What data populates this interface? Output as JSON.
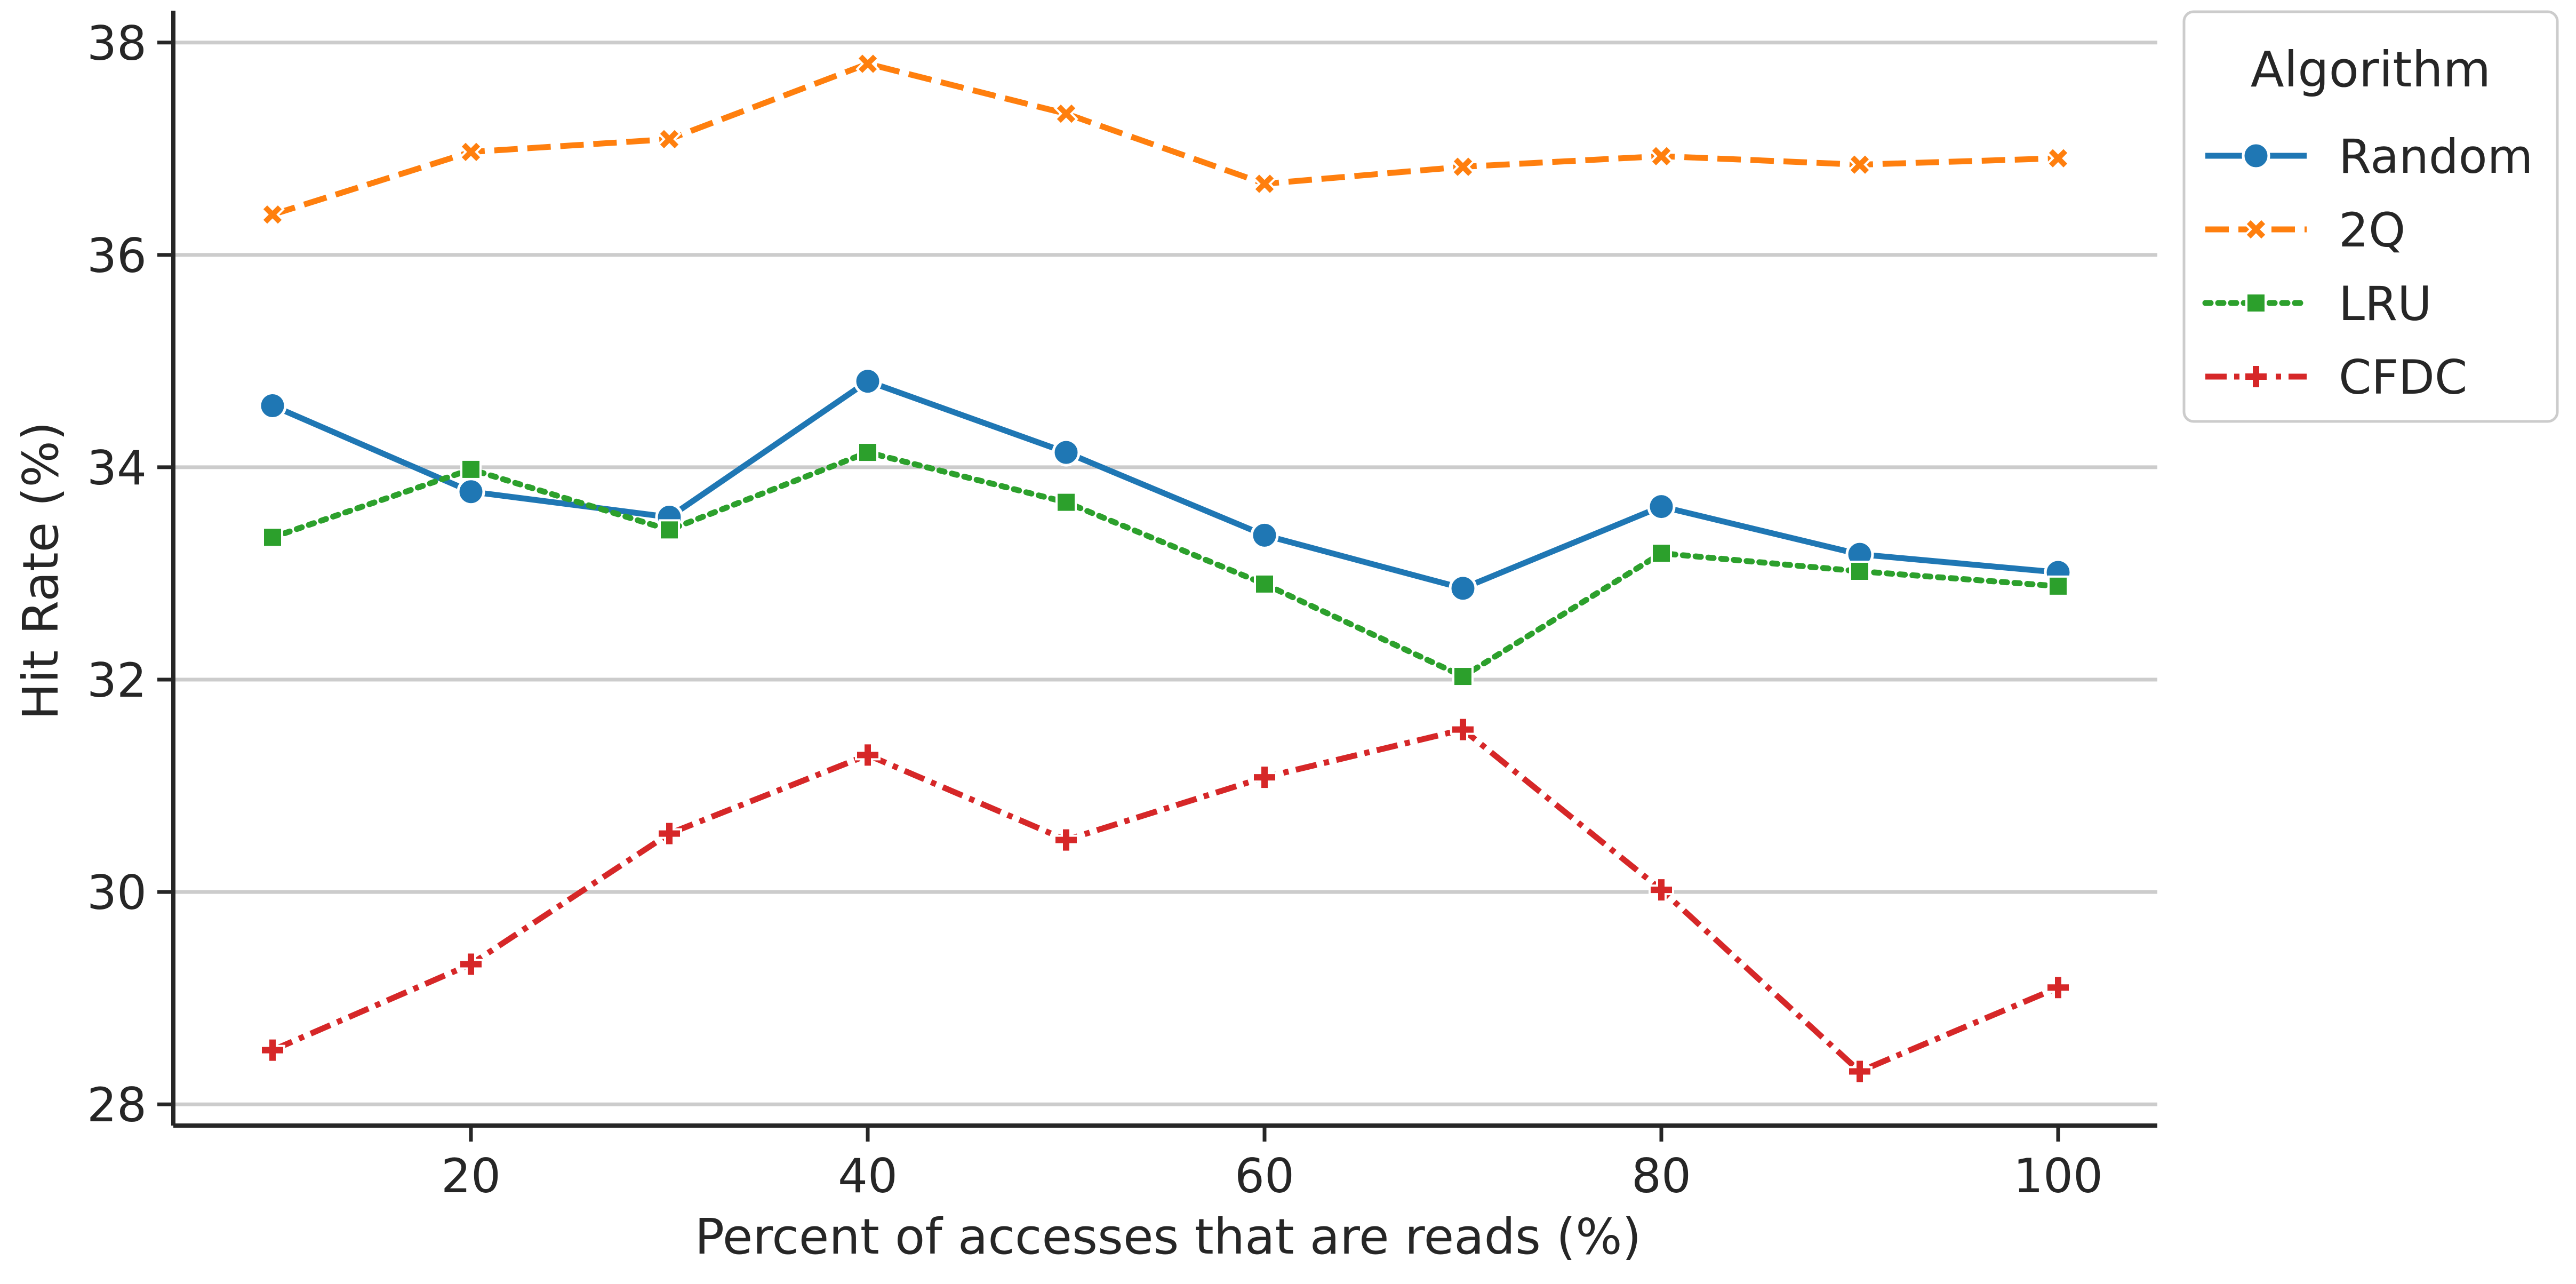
{
  "chart_data": {
    "type": "line",
    "title": "",
    "xlabel": "Percent of accesses that are reads (%)",
    "ylabel": "Hit Rate (%)",
    "x": [
      10,
      20,
      30,
      40,
      50,
      60,
      70,
      80,
      90,
      100
    ],
    "xlim": [
      5,
      105
    ],
    "ylim": [
      27.8,
      38.25
    ],
    "xticks": [
      "20",
      "40",
      "60",
      "80",
      "100"
    ],
    "yticks": [
      "28",
      "30",
      "32",
      "34",
      "36",
      "38"
    ],
    "grid": "horizontal",
    "legend": {
      "title": "Algorithm",
      "placement": "outside top-right"
    },
    "series": [
      {
        "name": "Random",
        "color": "#1f77b4",
        "line_style": "solid",
        "marker": "circle",
        "values": [
          34.58,
          33.77,
          33.53,
          34.81,
          34.14,
          33.36,
          32.86,
          33.63,
          33.18,
          33.01
        ]
      },
      {
        "name": "2Q",
        "color": "#ff7f0e",
        "line_style": "dashed",
        "marker": "x",
        "values": [
          36.38,
          36.97,
          37.09,
          37.8,
          37.33,
          36.67,
          36.83,
          36.93,
          36.85,
          36.91
        ]
      },
      {
        "name": "LRU",
        "color": "#2ca02c",
        "line_style": "dotted",
        "marker": "square",
        "values": [
          33.34,
          33.98,
          33.41,
          34.14,
          33.67,
          32.9,
          32.03,
          33.19,
          33.02,
          32.88
        ]
      },
      {
        "name": "CFDC",
        "color": "#d62728",
        "line_style": "dashdot",
        "marker": "plus",
        "values": [
          28.51,
          29.32,
          30.55,
          31.29,
          30.49,
          31.08,
          31.53,
          30.02,
          28.31,
          29.1
        ]
      }
    ]
  }
}
